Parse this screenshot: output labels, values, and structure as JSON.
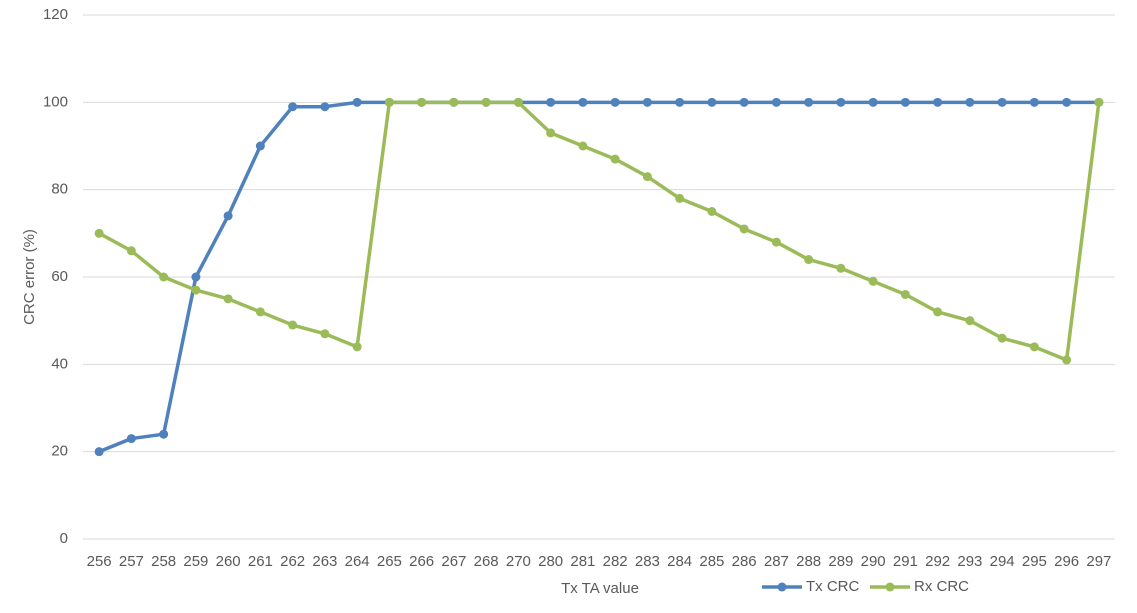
{
  "chart_data": {
    "type": "line",
    "x_label": "Tx TA value",
    "y_label": "CRC error (%)",
    "categories": [
      "256",
      "257",
      "258",
      "259",
      "260",
      "261",
      "262",
      "263",
      "264",
      "265",
      "266",
      "267",
      "268",
      "270",
      "280",
      "281",
      "282",
      "283",
      "284",
      "285",
      "286",
      "287",
      "288",
      "289",
      "290",
      "291",
      "292",
      "293",
      "294",
      "295",
      "296",
      "297"
    ],
    "series": [
      {
        "name": "Tx CRC",
        "color": "#4f81bd",
        "values": [
          20,
          23,
          24,
          60,
          74,
          90,
          99,
          99,
          100,
          100,
          100,
          100,
          100,
          100,
          100,
          100,
          100,
          100,
          100,
          100,
          100,
          100,
          100,
          100,
          100,
          100,
          100,
          100,
          100,
          100,
          100,
          100
        ]
      },
      {
        "name": "Rx CRC",
        "color": "#9bbb59",
        "values": [
          70,
          66,
          60,
          57,
          55,
          52,
          49,
          47,
          44,
          100,
          100,
          100,
          100,
          100,
          93,
          90,
          87,
          83,
          78,
          75,
          71,
          68,
          64,
          62,
          59,
          56,
          52,
          50,
          46,
          44,
          41,
          100
        ]
      }
    ],
    "ylim": [
      0,
      120
    ],
    "yticks": [
      0,
      20,
      40,
      60,
      80,
      100,
      120
    ],
    "grid": true,
    "legend": "bottom"
  }
}
